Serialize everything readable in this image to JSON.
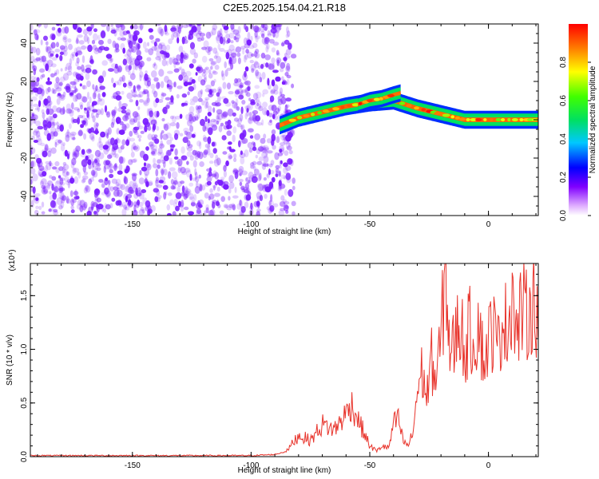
{
  "title": "C2E5.2025.154.04.21.R18",
  "colors": {
    "snr_line": "#e8342c",
    "spectrogram_noise": "#7a1cff",
    "background": "#ffffff"
  },
  "chart_data": [
    {
      "type": "heatmap",
      "title": "C2E5.2025.154.04.21.R18",
      "xlabel": "Height of straight line (km)",
      "ylabel": "Frequency (Hz)",
      "xlim": [
        -193,
        21
      ],
      "ylim": [
        -50,
        50
      ],
      "x_ticks": [
        "-150",
        "-100",
        "-50",
        "0"
      ],
      "x_tick_values": [
        -150,
        -100,
        -50,
        0
      ],
      "y_ticks": [
        "40",
        "20",
        "0",
        "-20",
        "-40"
      ],
      "y_tick_values": [
        40,
        20,
        0,
        -20,
        -40
      ],
      "noise_region_x": [
        -193,
        -82
      ],
      "trace": {
        "x": [
          -88,
          -80,
          -70,
          -60,
          -50,
          -40,
          -30,
          -20,
          -10,
          0,
          10,
          20
        ],
        "y": [
          -3,
          1,
          4,
          7,
          9,
          10,
          6,
          3,
          0,
          0,
          0,
          0
        ]
      },
      "trace_branch": {
        "x": [
          -55,
          -50,
          -45,
          -40,
          -37
        ],
        "y": [
          8,
          10,
          11,
          13,
          14
        ]
      },
      "colorbar": {
        "label": "Normalized spectral amplitude",
        "range": [
          0,
          1
        ],
        "ticks": [
          "0.0",
          "0.2",
          "0.4",
          "0.6",
          "0.8"
        ],
        "tick_values": [
          0.0,
          0.2,
          0.4,
          0.6,
          0.8
        ]
      }
    },
    {
      "type": "line",
      "xlabel": "Height of straight line (km)",
      "ylabel": "SNR (10 * v/v)",
      "scale_label": "(x10⁴)",
      "xlim": [
        -193,
        21
      ],
      "ylim": [
        0,
        1.8
      ],
      "x_ticks": [
        "-150",
        "-100",
        "-50",
        "0"
      ],
      "x_tick_values": [
        -150,
        -100,
        -50,
        0
      ],
      "y_ticks": [
        "0.0",
        "0.5",
        "1.0",
        "1.5"
      ],
      "y_tick_values": [
        0.0,
        0.5,
        1.0,
        1.5
      ],
      "series": [
        {
          "x": [
            -193,
            -100,
            -90,
            -85,
            -80,
            -75,
            -70,
            -65,
            -60,
            -58,
            -55,
            -52,
            -50,
            -47,
            -45,
            -42,
            -40,
            -38,
            -36,
            -34,
            -32,
            -30,
            -28,
            -26,
            -24,
            -22,
            -20,
            -18,
            -16,
            -14,
            -12,
            -10,
            -8,
            -6,
            -4,
            -2,
            0,
            2,
            4,
            6,
            8,
            10,
            12,
            14,
            16,
            18,
            21
          ],
          "y": [
            0.01,
            0.01,
            0.02,
            0.05,
            0.2,
            0.15,
            0.3,
            0.25,
            0.4,
            0.5,
            0.35,
            0.2,
            0.1,
            0.05,
            0.1,
            0.08,
            0.3,
            0.35,
            0.15,
            0.1,
            0.2,
            0.6,
            0.8,
            0.55,
            0.9,
            0.7,
            1.1,
            1.75,
            0.9,
            1.1,
            1.3,
            0.95,
            1.2,
            1.05,
            1.3,
            0.85,
            1.1,
            1.2,
            1.0,
            1.35,
            1.15,
            1.6,
            1.1,
            1.4,
            1.3,
            1.45,
            1.4
          ]
        }
      ]
    }
  ]
}
